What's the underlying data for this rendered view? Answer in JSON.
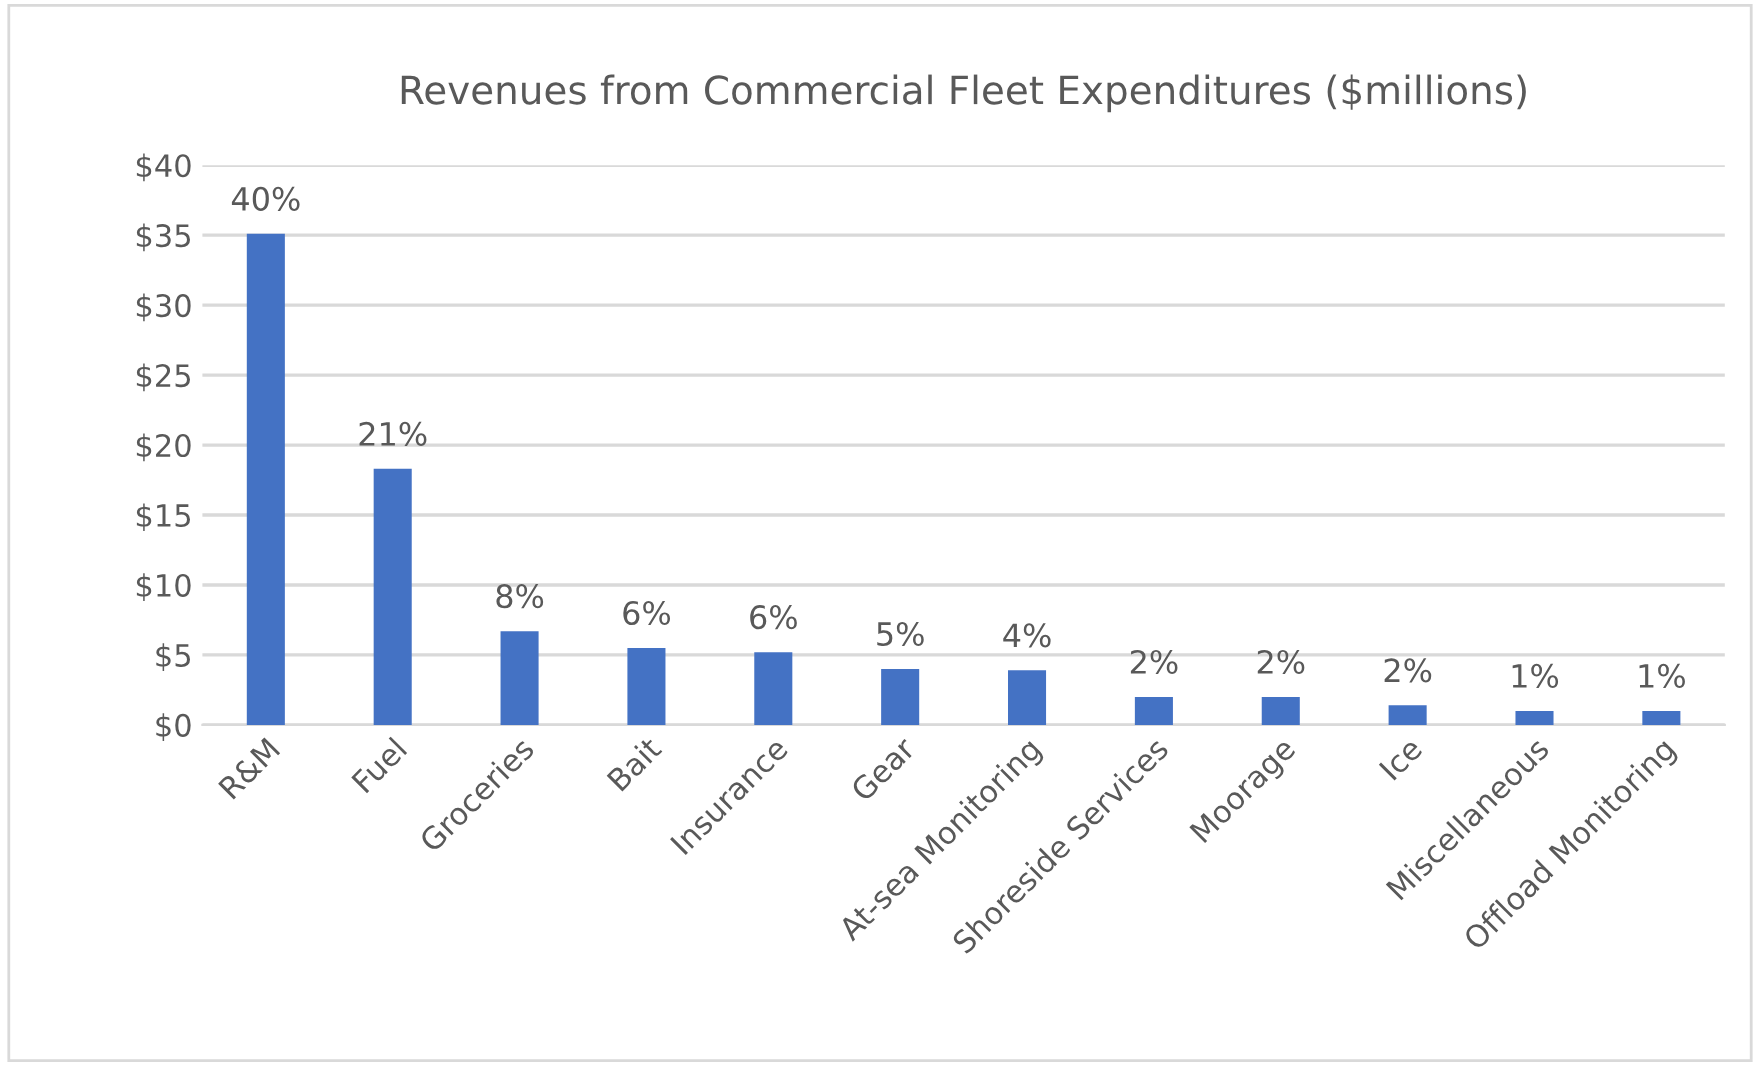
{
  "chart_data": {
    "type": "bar",
    "title": "Revenues from Commercial Fleet Expenditures ($millions)",
    "categories": [
      "R&M",
      "Fuel",
      "Groceries",
      "Bait",
      "Insurance",
      "Gear",
      "At-sea Monitoring",
      "Shoreside Services",
      "Moorage",
      "Ice",
      "Miscellaneous",
      "Offload Monitoring"
    ],
    "series": [
      {
        "color": "#4472c4",
        "values": [
          35.1,
          18.3,
          6.7,
          5.5,
          5.2,
          4.0,
          3.9,
          2.0,
          2.0,
          1.4,
          1.0,
          1.0
        ]
      }
    ],
    "annotations": [
      {
        "text": "40%",
        "x": "R&M",
        "y": 35.1
      },
      {
        "text": "21%",
        "x": "Fuel",
        "y": 18.3
      },
      {
        "text": "8%",
        "x": "Groceries",
        "y": 6.7
      },
      {
        "text": "6%",
        "x": "Bait",
        "y": 5.5
      },
      {
        "text": "6%",
        "x": "Insurance",
        "y": 5.2
      },
      {
        "text": "5%",
        "x": "Gear",
        "y": 4.0
      },
      {
        "text": "4%",
        "x": "At-sea Monitoring",
        "y": 3.9
      },
      {
        "text": "2%",
        "x": "Shoreside Services",
        "y": 2.0
      },
      {
        "text": "2%",
        "x": "Moorage",
        "y": 2.0
      },
      {
        "text": "2%",
        "x": "Ice",
        "y": 1.4
      },
      {
        "text": "1%",
        "x": "Miscellaneous",
        "y": 1.0
      },
      {
        "text": "1%",
        "x": "Offload Monitoring",
        "y": 1.0
      }
    ],
    "ylim": [
      0,
      40
    ],
    "yticks": [
      {
        "value": 0,
        "label": "$0"
      },
      {
        "value": 5,
        "label": "$5"
      },
      {
        "value": 10,
        "label": "$10"
      },
      {
        "value": 15,
        "label": "$15"
      },
      {
        "value": 20,
        "label": "$20"
      },
      {
        "value": 25,
        "label": "$25"
      },
      {
        "value": 30,
        "label": "$30"
      },
      {
        "value": 35,
        "label": "$35"
      },
      {
        "value": 40,
        "label": "$40"
      }
    ],
    "grid": "y",
    "legend": false
  }
}
